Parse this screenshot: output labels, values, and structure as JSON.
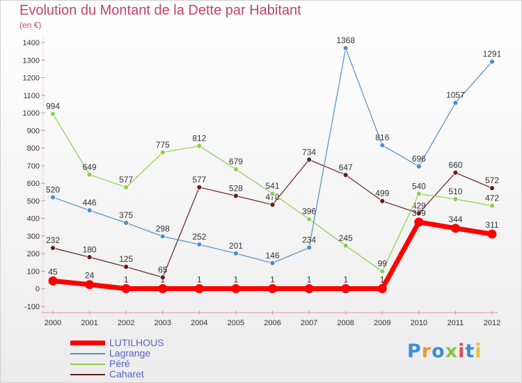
{
  "title": "Evolution du Montant de la Dette par Habitant",
  "subtitle": "(en €)",
  "logo": {
    "text": "Proxiti",
    "colors": [
      "#3b8fd4",
      "#f2962f",
      "#3b8fd4",
      "#8cc43f",
      "#d94f4f",
      "#3b8fd4",
      "#e0c33a"
    ]
  },
  "chart_data": {
    "type": "line",
    "x": [
      "2000",
      "2001",
      "2002",
      "2003",
      "2004",
      "2005",
      "2006",
      "2007",
      "2008",
      "2009",
      "2010",
      "2011",
      "2012"
    ],
    "ylim": [
      -100,
      1400
    ],
    "yticks": [
      -100,
      0,
      100,
      200,
      300,
      400,
      500,
      600,
      700,
      800,
      900,
      1000,
      1100,
      1200,
      1300,
      1400
    ],
    "grid": false,
    "legend_position": "bottom-left",
    "series": [
      {
        "name": "Caharet",
        "color": "#6b1a1a",
        "width": 1.2,
        "marker": 3.5,
        "values": [
          232,
          180,
          125,
          65,
          577,
          528,
          478,
          734,
          647,
          499,
          429,
          660,
          572
        ]
      },
      {
        "name": "Péré",
        "color": "#8ccf4d",
        "width": 1.2,
        "marker": 3.5,
        "values": [
          994,
          649,
          577,
          775,
          812,
          679,
          541,
          396,
          245,
          99,
          540,
          510,
          472
        ]
      },
      {
        "name": "Lagrange",
        "color": "#4a8fcc",
        "width": 1.2,
        "marker": 3.5,
        "values": [
          520,
          446,
          375,
          298,
          252,
          201,
          146,
          234,
          1368,
          816,
          696,
          1057,
          1291
        ]
      },
      {
        "name": "LUTILHOUS",
        "color": "#ff0000",
        "width": 7,
        "marker": 6.5,
        "values": [
          45,
          24,
          1,
          1,
          1,
          1,
          1,
          1,
          1,
          1,
          379,
          344,
          311
        ]
      }
    ]
  },
  "legend": [
    {
      "label": "LUTILHOUS",
      "color": "#ff0000",
      "width": 7
    },
    {
      "label": "Lagrange",
      "color": "#4a8fcc",
      "width": 2
    },
    {
      "label": "Péré",
      "color": "#8ccf4d",
      "width": 2
    },
    {
      "label": "Caharet",
      "color": "#6b1a1a",
      "width": 2
    }
  ]
}
